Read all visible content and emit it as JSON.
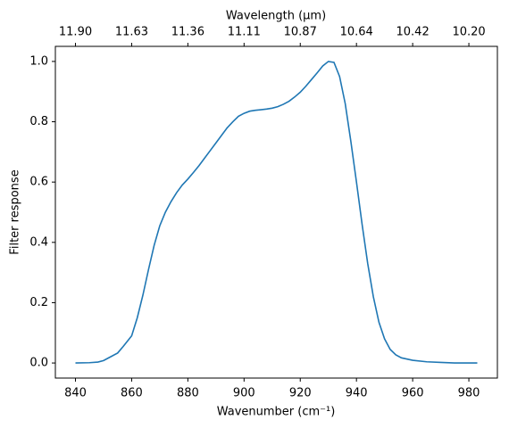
{
  "chart_data": {
    "type": "line",
    "xlabel": "Wavenumber (cm⁻¹)",
    "ylabel": "Filter response",
    "x2label": "Wavelength (μm)",
    "x": [
      840,
      845,
      848,
      850,
      852,
      855,
      857,
      860,
      862,
      864,
      866,
      868,
      870,
      872,
      874,
      876,
      878,
      880,
      882,
      884,
      886,
      888,
      890,
      892,
      894,
      896,
      898,
      900,
      902,
      904,
      906,
      908,
      910,
      912,
      914,
      916,
      918,
      920,
      922,
      924,
      926,
      928,
      930,
      932,
      934,
      936,
      938,
      940,
      942,
      944,
      946,
      948,
      950,
      952,
      954,
      956,
      960,
      965,
      970,
      975,
      980,
      983
    ],
    "series": [
      {
        "name": "Filter response",
        "color": "#1f77b4",
        "values": [
          0.0,
          0.001,
          0.003,
          0.008,
          0.018,
          0.033,
          0.055,
          0.09,
          0.15,
          0.225,
          0.31,
          0.39,
          0.455,
          0.5,
          0.535,
          0.565,
          0.59,
          0.61,
          0.632,
          0.655,
          0.68,
          0.705,
          0.73,
          0.755,
          0.78,
          0.8,
          0.818,
          0.828,
          0.835,
          0.838,
          0.84,
          0.842,
          0.845,
          0.85,
          0.858,
          0.868,
          0.882,
          0.898,
          0.918,
          0.94,
          0.962,
          0.985,
          1.0,
          0.997,
          0.95,
          0.86,
          0.735,
          0.6,
          0.46,
          0.33,
          0.22,
          0.135,
          0.08,
          0.045,
          0.027,
          0.017,
          0.009,
          0.004,
          0.002,
          0.0,
          0.0,
          0.0
        ]
      }
    ],
    "xlim": [
      832.85,
      990.15
    ],
    "ylim": [
      -0.05,
      1.05
    ],
    "xticks": [
      840,
      860,
      880,
      900,
      920,
      940,
      960,
      980
    ],
    "yticks": [
      {
        "value": 0,
        "label": "0.0"
      },
      {
        "value": 0.2,
        "label": "0.2"
      },
      {
        "value": 0.4,
        "label": "0.4"
      },
      {
        "value": 0.6,
        "label": "0.6"
      },
      {
        "value": 0.8,
        "label": "0.8"
      },
      {
        "value": 1,
        "label": "1.0"
      }
    ],
    "x2ticks": [
      {
        "value": 840,
        "label": "11.90"
      },
      {
        "value": 860,
        "label": "11.63"
      },
      {
        "value": 880,
        "label": "11.36"
      },
      {
        "value": 900,
        "label": "11.11"
      },
      {
        "value": 920,
        "label": "10.87"
      },
      {
        "value": 940,
        "label": "10.64"
      },
      {
        "value": 960,
        "label": "10.42"
      },
      {
        "value": 980,
        "label": "10.20"
      }
    ]
  }
}
